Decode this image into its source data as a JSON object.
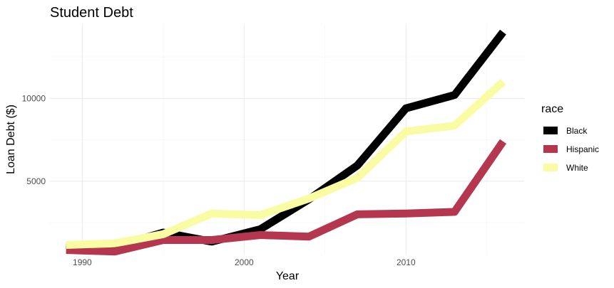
{
  "chart_data": {
    "type": "line",
    "title": "Student Debt",
    "xlabel": "Year",
    "ylabel": "Loan Debt ($)",
    "x": [
      1989,
      1992,
      1995,
      1998,
      2001,
      2004,
      2007,
      2010,
      2013,
      2016
    ],
    "series": [
      {
        "name": "Black",
        "color": "#000000",
        "values": [
          1150,
          1050,
          1900,
          1350,
          2100,
          3900,
          5950,
          9400,
          10200,
          14000
        ]
      },
      {
        "name": "Hispanic",
        "color": "#b5374f",
        "values": [
          850,
          750,
          1450,
          1450,
          1750,
          1650,
          3000,
          3050,
          3150,
          7400
        ]
      },
      {
        "name": "White",
        "color": "#fafca4",
        "values": [
          1150,
          1250,
          1800,
          3050,
          2950,
          3950,
          5200,
          8000,
          8350,
          11000
        ]
      }
    ],
    "xlim": [
      1988,
      2017.3
    ],
    "ylim": [
      570,
      14475
    ],
    "x_ticks": [
      1990,
      2000,
      2010
    ],
    "x_tick_labels": [
      "1990",
      "2000",
      "2010"
    ],
    "y_ticks": [
      5000,
      10000
    ],
    "y_tick_labels": [
      "5000",
      "10000"
    ],
    "grid": true,
    "legend": {
      "title": "race",
      "position": "right"
    }
  }
}
